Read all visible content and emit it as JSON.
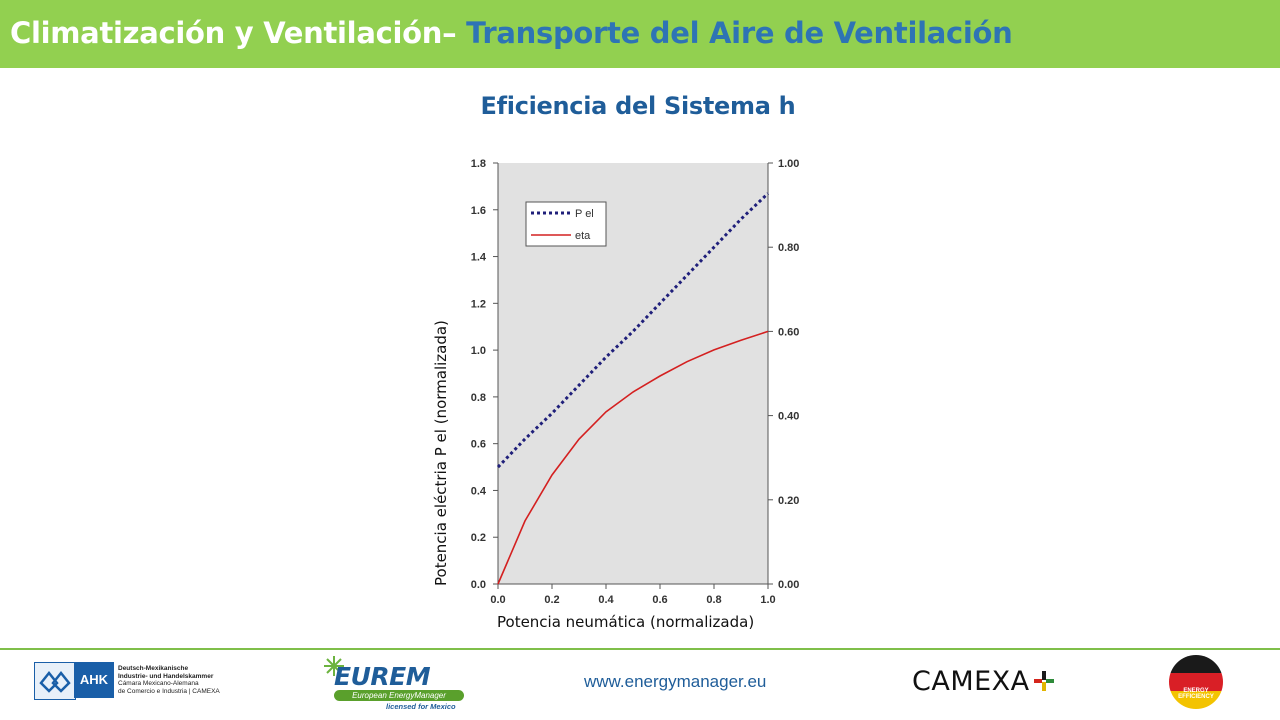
{
  "header": {
    "title_main": "Climatización y Ventilación–",
    "title_accent": "Transporte del Aire de Ventilación"
  },
  "slide": {
    "title": "Eficiencia del Sistema h"
  },
  "colors": {
    "header_bg": "#92d050",
    "accent": "#2e74b5",
    "title_blue": "#1f5d99",
    "plot_bg": "#e1e1e1",
    "series_pel": "#1f1f7a",
    "series_eta": "#d42020"
  },
  "chart_data": {
    "type": "line",
    "title": "",
    "xlabel": "Potencia neumática (normalizada)",
    "ylabel": "Potencia eléctria P el (normalizada)",
    "y2label": "",
    "xlim": [
      0.0,
      1.0
    ],
    "ylim": [
      0.0,
      1.8
    ],
    "y2lim": [
      0.0,
      1.0
    ],
    "x_ticks": [
      "0.0",
      "0.2",
      "0.4",
      "0.6",
      "0.8",
      "1.0"
    ],
    "y_ticks": [
      "0.0",
      "0.2",
      "0.4",
      "0.6",
      "0.8",
      "1.0",
      "1.2",
      "1.4",
      "1.6",
      "1.8"
    ],
    "y2_ticks": [
      "0.00",
      "0.20",
      "0.40",
      "0.60",
      "0.80",
      "1.00"
    ],
    "grid": false,
    "legend_position": "top-left",
    "x": [
      0.0,
      0.1,
      0.2,
      0.3,
      0.4,
      0.5,
      0.6,
      0.7,
      0.8,
      0.9,
      1.0
    ],
    "series": [
      {
        "name": "P el",
        "axis": "left",
        "style": "dotted",
        "values": [
          0.5,
          0.62,
          0.73,
          0.85,
          0.97,
          1.08,
          1.2,
          1.32,
          1.44,
          1.56,
          1.67
        ]
      },
      {
        "name": "eta",
        "axis": "right",
        "style": "solid",
        "values": [
          0.0,
          0.15,
          0.259,
          0.344,
          0.409,
          0.456,
          0.494,
          0.528,
          0.556,
          0.579,
          0.6
        ]
      }
    ]
  },
  "footer": {
    "website": "www.energymanager.eu",
    "ahk": {
      "badge": "AHK",
      "line1": "Deutsch-Mexikanische",
      "line2": "Industrie- und Handelskammer",
      "line3": "Cámara Mexicano-Alemana",
      "line4": "de Comercio e Industria | CAMEXA"
    },
    "eurem": {
      "word": "EUREM",
      "band": "European EnergyManager",
      "sub": "licensed for Mexico"
    },
    "camexa": {
      "word": "CAMEXA"
    },
    "ee": {
      "line1": "ENERGY",
      "line2": "EFFICIENCY"
    }
  }
}
